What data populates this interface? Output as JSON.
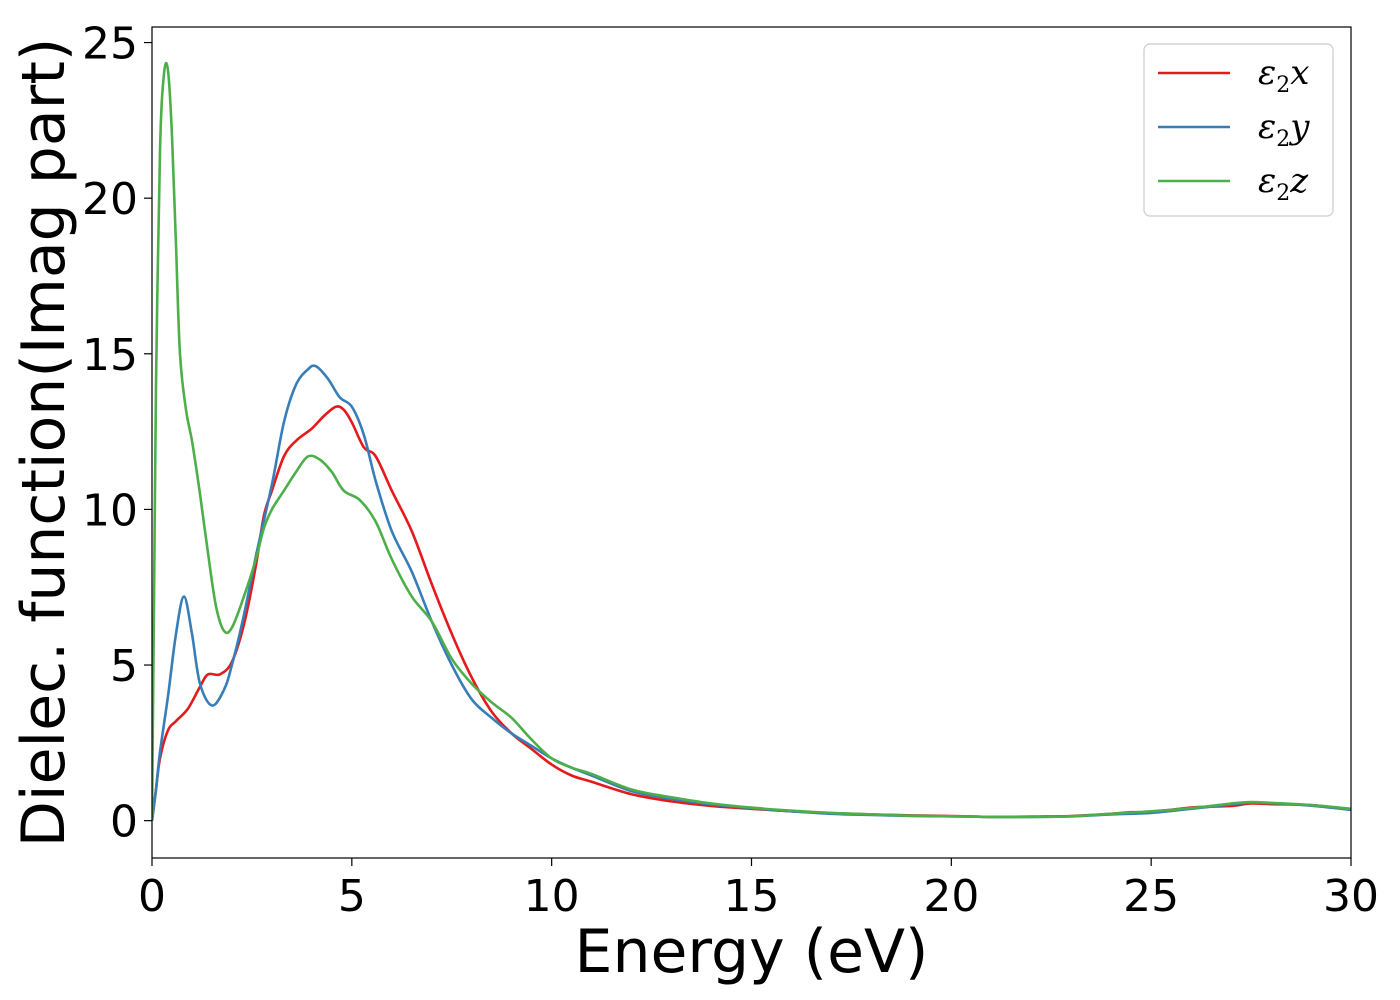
{
  "chart_data": {
    "type": "line",
    "title": "",
    "xlabel": "Energy (eV)",
    "ylabel": "Dielec. function(Imag part)",
    "xlim": [
      0,
      30
    ],
    "ylim": [
      -1.2,
      25.5
    ],
    "xticks": [
      0,
      5,
      10,
      15,
      20,
      25,
      30
    ],
    "yticks": [
      0,
      5,
      10,
      15,
      20,
      25
    ],
    "grid": false,
    "legend_position": "top-right",
    "series": [
      {
        "name": "ε2x",
        "legend": {
          "base": "ε",
          "sub": "2",
          "suffix": "x"
        },
        "color": "#e41a1c",
        "points": [
          [
            0,
            0
          ],
          [
            0.1,
            1.0
          ],
          [
            0.2,
            2.0
          ],
          [
            0.4,
            2.9
          ],
          [
            0.6,
            3.2
          ],
          [
            0.9,
            3.6
          ],
          [
            1.2,
            4.3
          ],
          [
            1.4,
            4.7
          ],
          [
            1.7,
            4.7
          ],
          [
            2.0,
            5.1
          ],
          [
            2.3,
            6.3
          ],
          [
            2.6,
            8.2
          ],
          [
            2.8,
            9.8
          ],
          [
            3.0,
            10.6
          ],
          [
            3.3,
            11.7
          ],
          [
            3.6,
            12.2
          ],
          [
            4.0,
            12.6
          ],
          [
            4.3,
            13.0
          ],
          [
            4.6,
            13.3
          ],
          [
            4.8,
            13.2
          ],
          [
            5.0,
            12.8
          ],
          [
            5.3,
            12.0
          ],
          [
            5.6,
            11.7
          ],
          [
            6.0,
            10.6
          ],
          [
            6.5,
            9.3
          ],
          [
            7.0,
            7.6
          ],
          [
            7.5,
            6.0
          ],
          [
            8.0,
            4.6
          ],
          [
            8.5,
            3.5
          ],
          [
            9.0,
            2.8
          ],
          [
            9.5,
            2.3
          ],
          [
            10.0,
            1.8
          ],
          [
            10.5,
            1.45
          ],
          [
            11.0,
            1.25
          ],
          [
            12.0,
            0.85
          ],
          [
            13.0,
            0.62
          ],
          [
            14.0,
            0.47
          ],
          [
            15.0,
            0.38
          ],
          [
            16.0,
            0.3
          ],
          [
            17.0,
            0.24
          ],
          [
            18.0,
            0.2
          ],
          [
            19.0,
            0.17
          ],
          [
            20.0,
            0.15
          ],
          [
            21.0,
            0.12
          ],
          [
            22.0,
            0.13
          ],
          [
            23.0,
            0.15
          ],
          [
            24.0,
            0.22
          ],
          [
            24.5,
            0.27
          ],
          [
            25.0,
            0.28
          ],
          [
            26.0,
            0.42
          ],
          [
            26.5,
            0.45
          ],
          [
            27.0,
            0.47
          ],
          [
            27.5,
            0.55
          ],
          [
            28.0,
            0.53
          ],
          [
            29.0,
            0.5
          ],
          [
            30.0,
            0.35
          ]
        ]
      },
      {
        "name": "ε2y",
        "legend": {
          "base": "ε",
          "sub": "2",
          "suffix": "y"
        },
        "color": "#377eb8",
        "points": [
          [
            0,
            0
          ],
          [
            0.1,
            1.0
          ],
          [
            0.2,
            2.2
          ],
          [
            0.4,
            4.0
          ],
          [
            0.6,
            6.0
          ],
          [
            0.8,
            7.2
          ],
          [
            1.0,
            6.0
          ],
          [
            1.2,
            4.4
          ],
          [
            1.5,
            3.7
          ],
          [
            1.8,
            4.2
          ],
          [
            2.0,
            5.0
          ],
          [
            2.3,
            6.6
          ],
          [
            2.6,
            8.5
          ],
          [
            3.0,
            10.8
          ],
          [
            3.3,
            12.8
          ],
          [
            3.6,
            14.0
          ],
          [
            3.9,
            14.5
          ],
          [
            4.1,
            14.6
          ],
          [
            4.4,
            14.2
          ],
          [
            4.7,
            13.6
          ],
          [
            5.0,
            13.3
          ],
          [
            5.3,
            12.4
          ],
          [
            5.6,
            10.9
          ],
          [
            6.0,
            9.3
          ],
          [
            6.5,
            8.0
          ],
          [
            7.0,
            6.4
          ],
          [
            7.5,
            5.0
          ],
          [
            8.0,
            3.9
          ],
          [
            8.5,
            3.3
          ],
          [
            9.0,
            2.8
          ],
          [
            9.5,
            2.4
          ],
          [
            10.0,
            2.0
          ],
          [
            10.5,
            1.7
          ],
          [
            11.0,
            1.45
          ],
          [
            12.0,
            0.95
          ],
          [
            13.0,
            0.7
          ],
          [
            14.0,
            0.52
          ],
          [
            15.0,
            0.4
          ],
          [
            16.0,
            0.3
          ],
          [
            17.0,
            0.22
          ],
          [
            18.0,
            0.18
          ],
          [
            19.0,
            0.15
          ],
          [
            20.0,
            0.14
          ],
          [
            21.0,
            0.12
          ],
          [
            22.0,
            0.12
          ],
          [
            23.0,
            0.14
          ],
          [
            24.0,
            0.2
          ],
          [
            25.0,
            0.25
          ],
          [
            26.0,
            0.38
          ],
          [
            27.0,
            0.52
          ],
          [
            27.5,
            0.58
          ],
          [
            28.0,
            0.56
          ],
          [
            29.0,
            0.48
          ],
          [
            30.0,
            0.35
          ]
        ]
      },
      {
        "name": "ε2z",
        "legend": {
          "base": "ε",
          "sub": "2",
          "suffix": "z"
        },
        "color": "#4daf4a",
        "points": [
          [
            0,
            0
          ],
          [
            0.05,
            7.0
          ],
          [
            0.1,
            14.0
          ],
          [
            0.2,
            21.5
          ],
          [
            0.3,
            24.0
          ],
          [
            0.4,
            24.1
          ],
          [
            0.5,
            22.0
          ],
          [
            0.6,
            18.5
          ],
          [
            0.7,
            15.0
          ],
          [
            0.85,
            13.2
          ],
          [
            1.0,
            12.2
          ],
          [
            1.2,
            10.5
          ],
          [
            1.4,
            8.6
          ],
          [
            1.6,
            6.9
          ],
          [
            1.8,
            6.1
          ],
          [
            2.0,
            6.2
          ],
          [
            2.3,
            7.2
          ],
          [
            2.6,
            8.4
          ],
          [
            2.8,
            9.4
          ],
          [
            3.0,
            10.0
          ],
          [
            3.3,
            10.6
          ],
          [
            3.6,
            11.2
          ],
          [
            3.9,
            11.7
          ],
          [
            4.2,
            11.6
          ],
          [
            4.5,
            11.2
          ],
          [
            4.8,
            10.6
          ],
          [
            5.2,
            10.3
          ],
          [
            5.6,
            9.6
          ],
          [
            6.0,
            8.4
          ],
          [
            6.5,
            7.2
          ],
          [
            7.0,
            6.4
          ],
          [
            7.5,
            5.2
          ],
          [
            8.0,
            4.4
          ],
          [
            8.5,
            3.8
          ],
          [
            9.0,
            3.3
          ],
          [
            9.5,
            2.6
          ],
          [
            10.0,
            2.0
          ],
          [
            10.5,
            1.7
          ],
          [
            11.0,
            1.5
          ],
          [
            12.0,
            1.0
          ],
          [
            13.0,
            0.75
          ],
          [
            14.0,
            0.55
          ],
          [
            15.0,
            0.42
          ],
          [
            16.0,
            0.32
          ],
          [
            17.0,
            0.25
          ],
          [
            18.0,
            0.2
          ],
          [
            19.0,
            0.16
          ],
          [
            20.0,
            0.14
          ],
          [
            21.0,
            0.12
          ],
          [
            22.0,
            0.12
          ],
          [
            23.0,
            0.14
          ],
          [
            24.0,
            0.22
          ],
          [
            25.0,
            0.3
          ],
          [
            26.0,
            0.4
          ],
          [
            27.0,
            0.55
          ],
          [
            27.5,
            0.6
          ],
          [
            28.0,
            0.57
          ],
          [
            29.0,
            0.5
          ],
          [
            30.0,
            0.38
          ]
        ]
      }
    ]
  }
}
